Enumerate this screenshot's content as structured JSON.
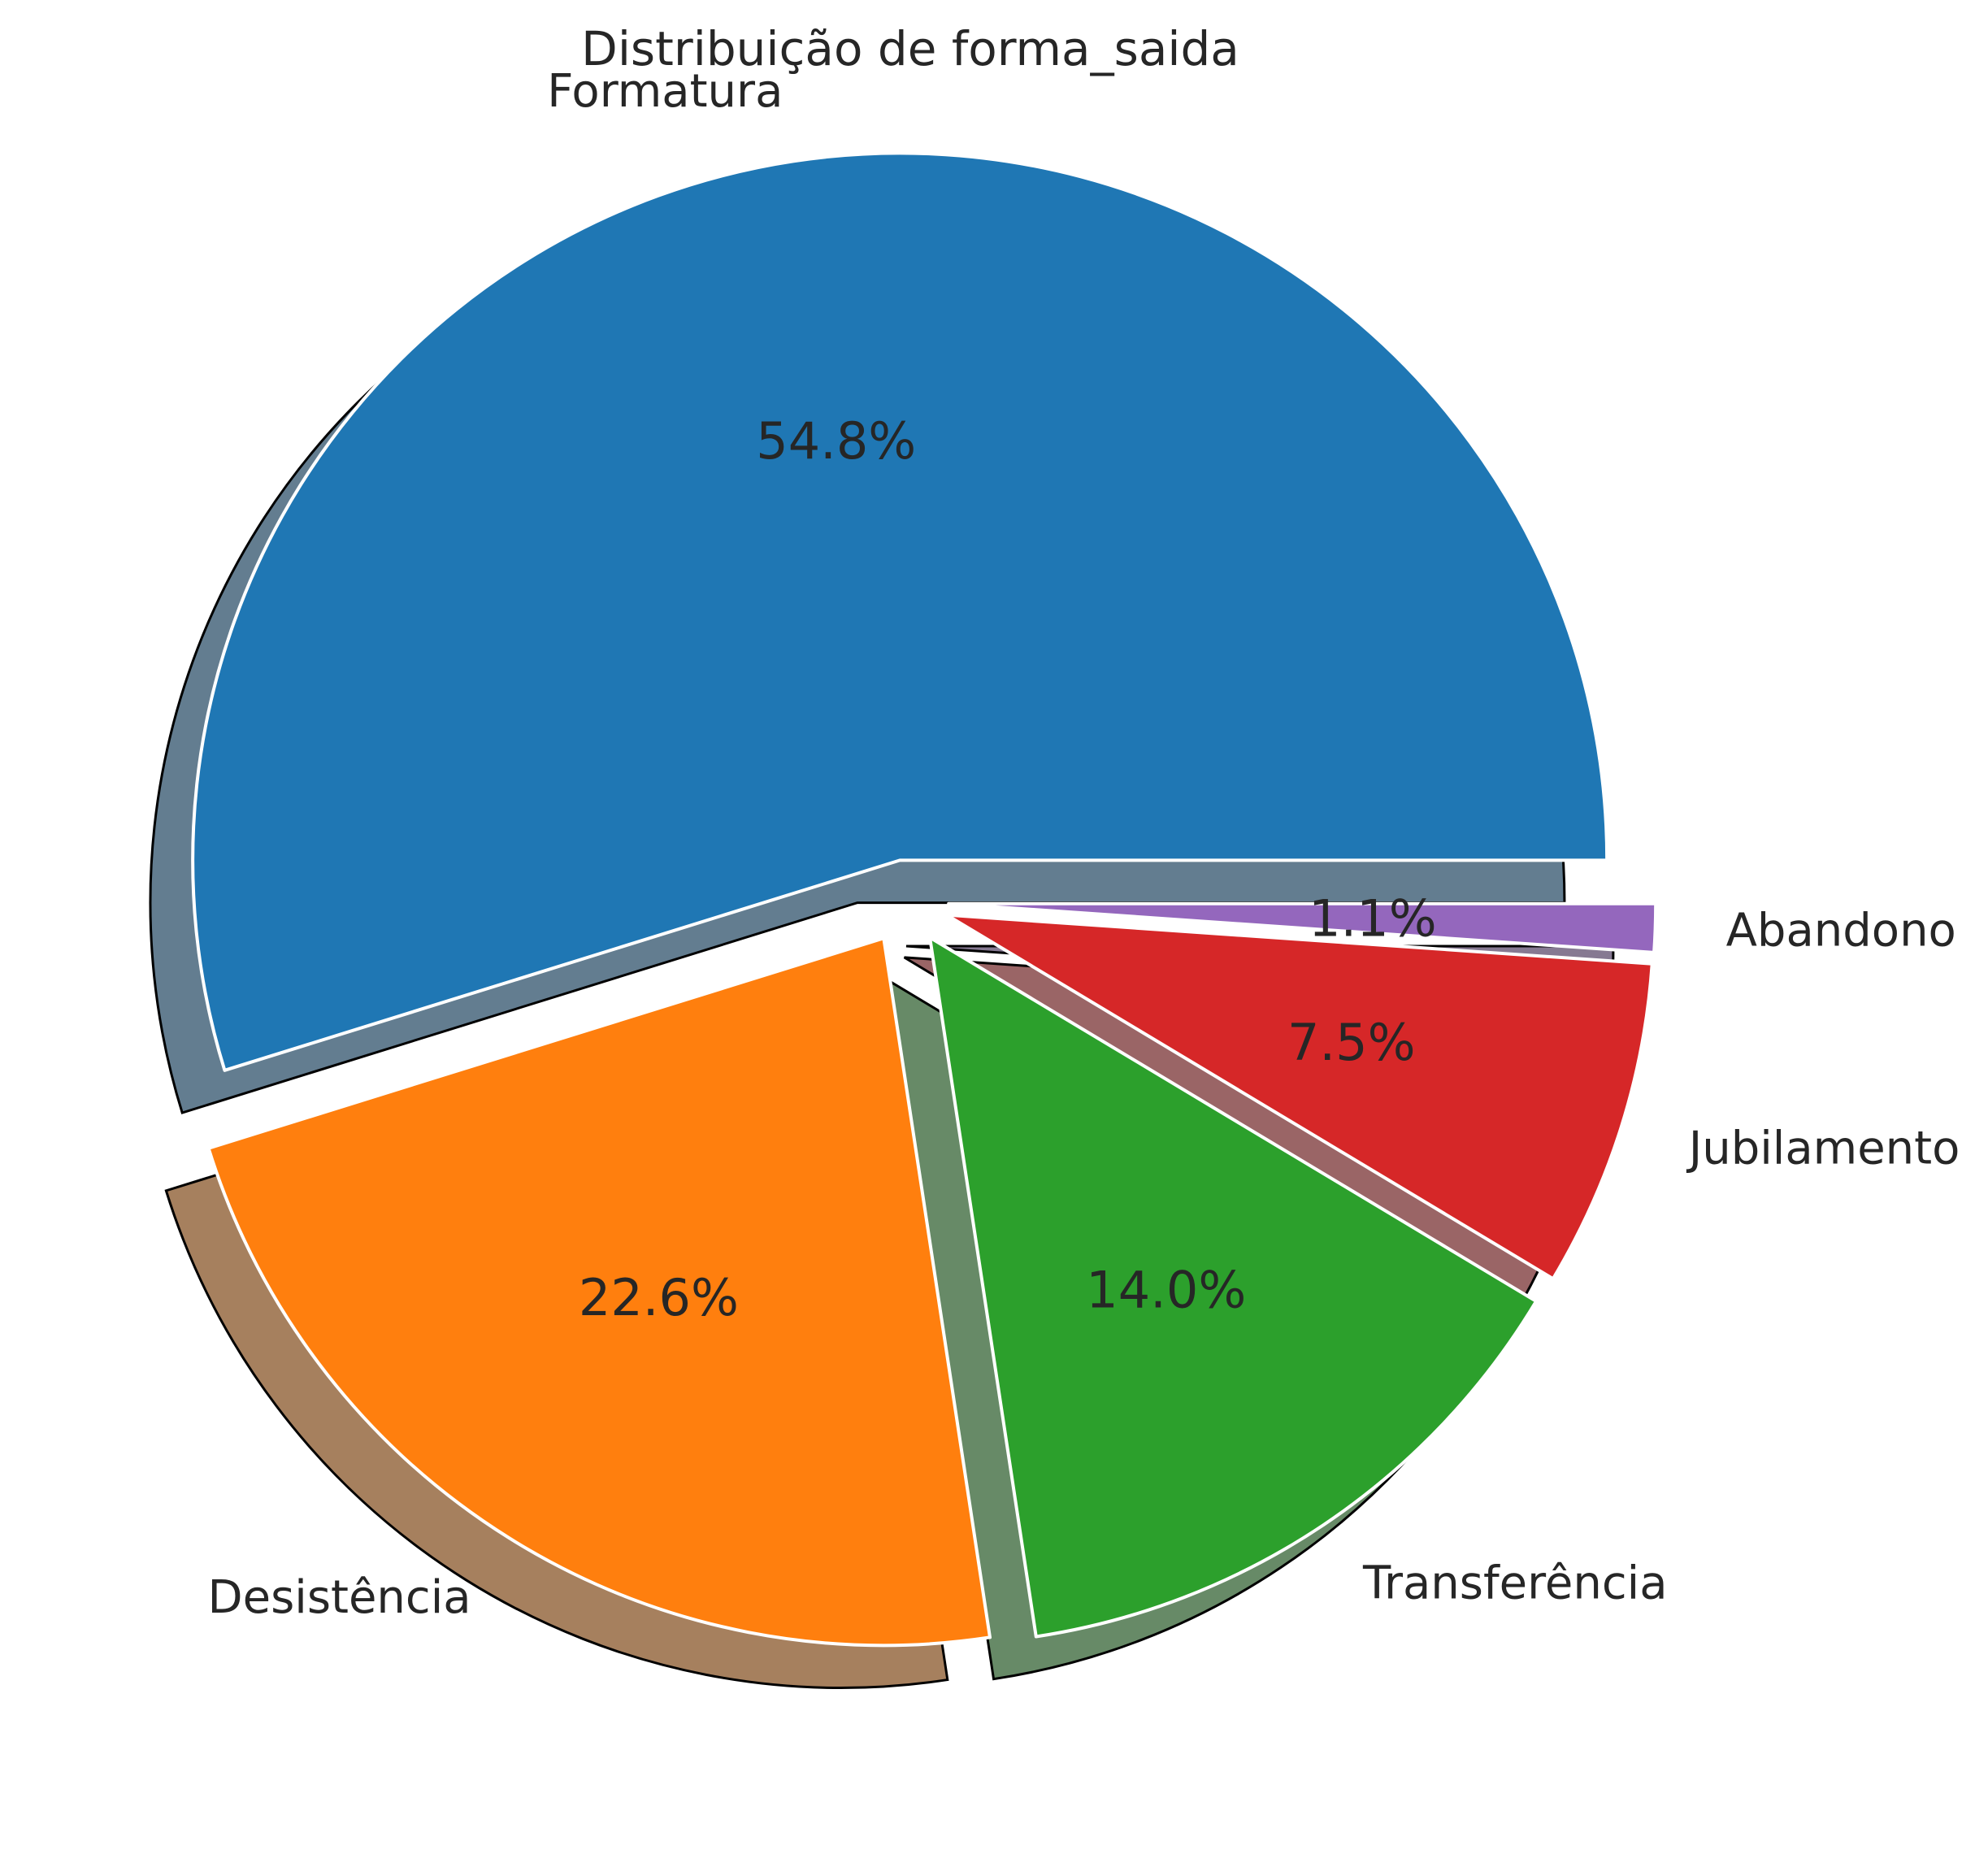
{
  "chart_data": {
    "type": "pie",
    "title": "Distribuição de forma_saida",
    "categories": [
      "Formatura",
      "Desistência",
      "Transferência",
      "Jubilamento",
      "Abandono"
    ],
    "values": [
      54.8,
      22.6,
      14.0,
      7.5,
      1.1
    ],
    "value_labels": [
      "54.8%",
      "22.6%",
      "14.0%",
      "7.5%",
      "1.1%"
    ],
    "colors": [
      "#1f77b4",
      "#ff7f0e",
      "#2ca02c",
      "#d62728",
      "#9467bd"
    ],
    "start_angle_deg": 0,
    "direction": "counterclockwise",
    "exploded": true,
    "shadow": true,
    "legend": "none"
  }
}
